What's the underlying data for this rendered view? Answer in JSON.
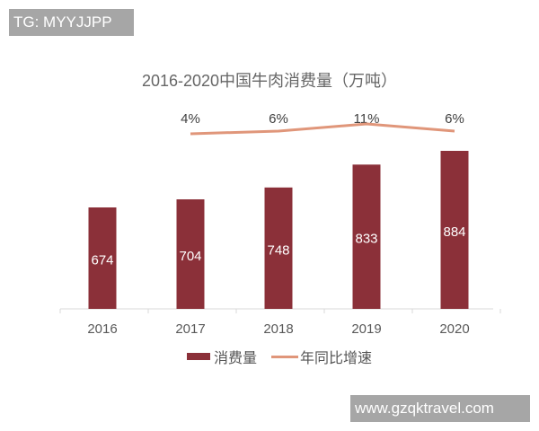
{
  "watermarks": {
    "top_left": "TG: MYYJJPP",
    "bottom_right": "www.gzqktravel.com"
  },
  "colors": {
    "bar": "#8b3039",
    "line": "#e0967a",
    "axis": "#d9d9d9",
    "label_text": "#555555"
  },
  "chart_data": {
    "type": "bar",
    "title": "2016-2020中国牛肉消费量（万吨）",
    "xlabel": "",
    "ylabel": "",
    "categories": [
      "2016",
      "2017",
      "2018",
      "2019",
      "2020"
    ],
    "series": [
      {
        "name": "消费量",
        "type": "bar",
        "values": [
          674,
          704,
          748,
          833,
          884
        ]
      },
      {
        "name": "年同比增速",
        "type": "line",
        "values": [
          null,
          4,
          6,
          11,
          6
        ],
        "labels": [
          "",
          "4%",
          "6%",
          "11%",
          "6%"
        ],
        "unit": "%"
      }
    ],
    "legend": {
      "position": "bottom",
      "items": [
        "消费量",
        "年同比增速"
      ]
    },
    "grid": false
  }
}
